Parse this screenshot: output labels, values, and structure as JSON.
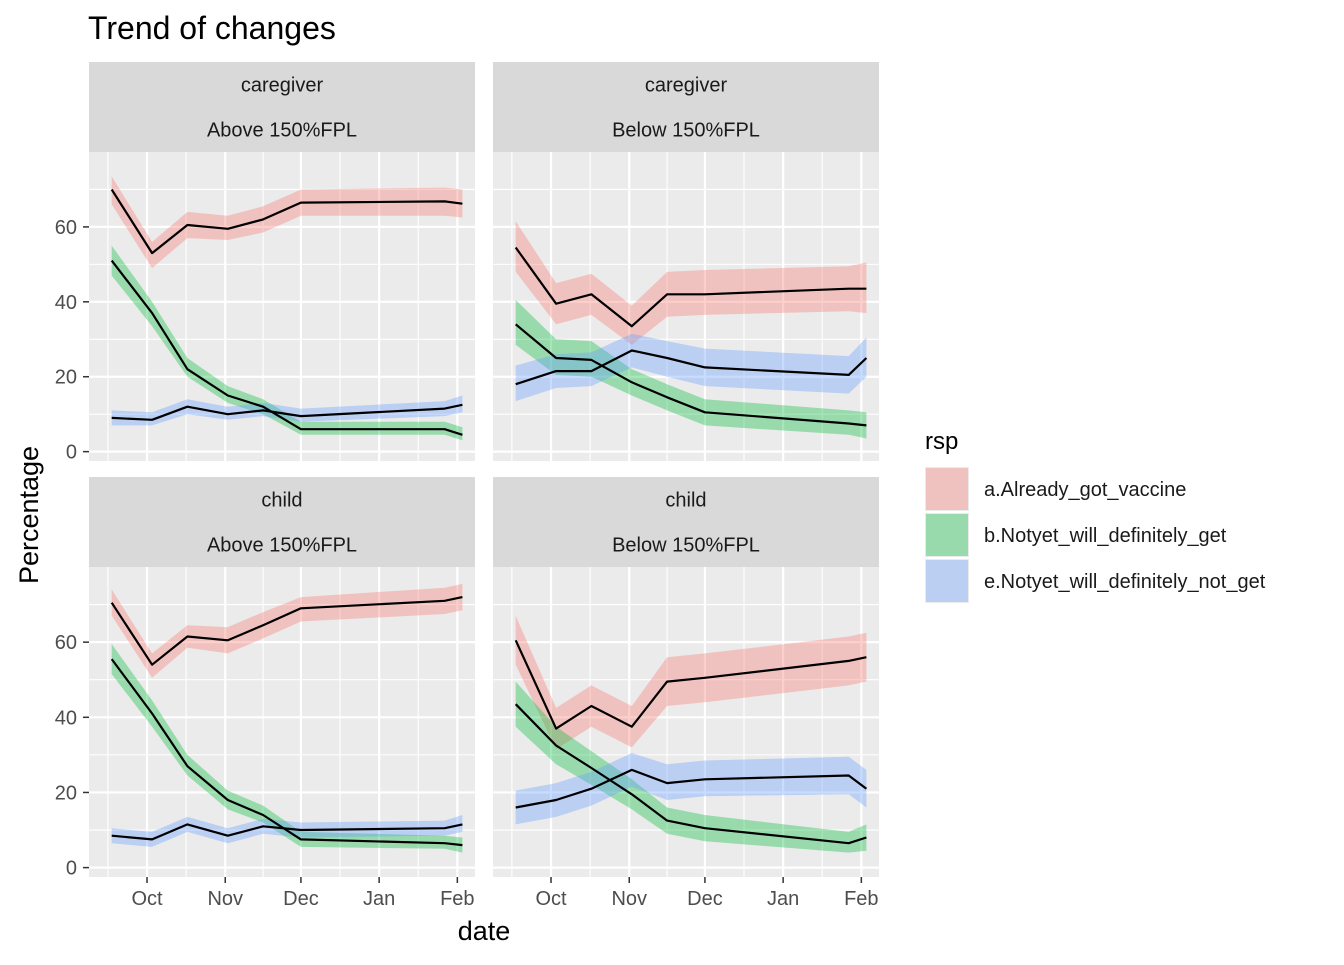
{
  "chart_data": {
    "type": "line",
    "title": "Trend of changes",
    "xlabel": "date",
    "ylabel": "Percentage",
    "legend": {
      "title": "rsp",
      "placement": "right",
      "entries": [
        "a.Already_got_vaccine",
        "b.Notyet_will_definitely_get",
        "e.Notyet_will_definitely_not_get"
      ]
    },
    "colors": {
      "a.Already_got_vaccine": "#F8766D",
      "b.Notyet_will_definitely_get": "#00BA38",
      "e.Notyet_will_definitely_not_get": "#619CFF",
      "line": "#000000",
      "panel_bg": "#EBEBEB",
      "strip_bg": "#D9D9D9",
      "grid": "#FFFFFF"
    },
    "x_ticks": [
      {
        "label": "Oct",
        "date": "2021-10-01"
      },
      {
        "label": "Nov",
        "date": "2021-11-01"
      },
      {
        "label": "Dec",
        "date": "2021-12-01"
      },
      {
        "label": "Jan",
        "date": "2022-01-01"
      },
      {
        "label": "Feb",
        "date": "2022-02-01"
      }
    ],
    "xlim": [
      "2021-09-08",
      "2022-02-08"
    ],
    "y_ticks": [
      0,
      20,
      40,
      60
    ],
    "ylim": [
      -2.5,
      80
    ],
    "grid": true,
    "panels": [
      {
        "strip_top": "caregiver",
        "strip_bottom": "Above 150%FPL",
        "series": [
          {
            "name": "a.Already_got_vaccine",
            "x": [
              "2021-09-17",
              "2021-10-03",
              "2021-10-17",
              "2021-11-02",
              "2021-11-16",
              "2021-12-01",
              "2022-01-27",
              "2022-02-03"
            ],
            "y": [
              70,
              53,
              60.5,
              59.5,
              62,
              66.5,
              66.8,
              66.2
            ],
            "lo": [
              66,
              49,
              57,
              56.5,
              58.5,
              63,
              63,
              62.5
            ],
            "hi": [
              73.5,
              56,
              64,
              63,
              65.5,
              70,
              70.5,
              70
            ]
          },
          {
            "name": "b.Notyet_will_definitely_get",
            "x": [
              "2021-09-17",
              "2021-10-03",
              "2021-10-17",
              "2021-11-02",
              "2021-11-16",
              "2021-12-01",
              "2022-01-27",
              "2022-02-03"
            ],
            "y": [
              51,
              37,
              22,
              15,
              12,
              6,
              6,
              4.5
            ],
            "lo": [
              47,
              33.5,
              20,
              13,
              10,
              4.5,
              4.5,
              3
            ],
            "hi": [
              55,
              40,
              25,
              17.5,
              14,
              8,
              8,
              6.5
            ]
          },
          {
            "name": "e.Notyet_will_definitely_not_get",
            "x": [
              "2021-09-17",
              "2021-10-03",
              "2021-10-17",
              "2021-11-02",
              "2021-11-16",
              "2021-12-01",
              "2022-01-27",
              "2022-02-03"
            ],
            "y": [
              9,
              8.5,
              12,
              10,
              11,
              9.5,
              11.5,
              12.5
            ],
            "lo": [
              7,
              7,
              10,
              8.5,
              9.5,
              8,
              9.5,
              10.5
            ],
            "hi": [
              11,
              10.5,
              14,
              12,
              13,
              11.5,
              13.5,
              15
            ]
          }
        ]
      },
      {
        "strip_top": "caregiver",
        "strip_bottom": "Below 150%FPL",
        "series": [
          {
            "name": "a.Already_got_vaccine",
            "x": [
              "2021-09-17",
              "2021-10-03",
              "2021-10-17",
              "2021-11-02",
              "2021-11-16",
              "2021-12-01",
              "2022-01-27",
              "2022-02-03"
            ],
            "y": [
              54.5,
              39.5,
              42,
              33.5,
              42,
              42,
              43.5,
              43.5
            ],
            "lo": [
              48,
              34,
              36.5,
              28.5,
              36,
              36.5,
              37.5,
              37
            ],
            "hi": [
              61.5,
              45,
              47.5,
              39,
              48,
              48.5,
              49.5,
              50.5
            ]
          },
          {
            "name": "b.Notyet_will_definitely_get",
            "x": [
              "2021-09-17",
              "2021-10-03",
              "2021-10-17",
              "2021-11-02",
              "2021-11-16",
              "2021-12-01",
              "2022-01-27",
              "2022-02-03"
            ],
            "y": [
              34,
              25,
              24.5,
              18.5,
              14.5,
              10.5,
              7.5,
              7
            ],
            "lo": [
              28.5,
              20.5,
              20,
              15,
              11,
              7,
              4.5,
              3.5
            ],
            "hi": [
              40.5,
              30,
              29.5,
              22,
              18,
              14,
              11,
              10.5
            ]
          },
          {
            "name": "e.Notyet_will_definitely_not_get",
            "x": [
              "2021-09-17",
              "2021-10-03",
              "2021-10-17",
              "2021-11-02",
              "2021-11-16",
              "2021-12-01",
              "2022-01-27",
              "2022-02-03"
            ],
            "y": [
              18,
              21.5,
              21.5,
              27,
              25,
              22.5,
              20.5,
              25
            ],
            "lo": [
              13.5,
              17,
              17.5,
              22.5,
              20,
              17.5,
              15.5,
              20
            ],
            "hi": [
              23,
              26,
              26.5,
              31.5,
              29.5,
              27.5,
              25.5,
              30.5
            ]
          }
        ]
      },
      {
        "strip_top": "child",
        "strip_bottom": "Above 150%FPL",
        "series": [
          {
            "name": "a.Already_got_vaccine",
            "x": [
              "2021-09-17",
              "2021-10-03",
              "2021-10-17",
              "2021-11-02",
              "2021-11-16",
              "2021-12-01",
              "2022-01-27",
              "2022-02-03"
            ],
            "y": [
              70.5,
              54,
              61.5,
              60.5,
              64.5,
              69,
              71,
              72
            ],
            "lo": [
              67,
              50.5,
              58.5,
              57,
              61,
              65.5,
              67.5,
              68.5
            ],
            "hi": [
              74,
              57,
              64.5,
              64,
              68,
              72,
              74.5,
              75.5
            ]
          },
          {
            "name": "b.Notyet_will_definitely_get",
            "x": [
              "2021-09-17",
              "2021-10-03",
              "2021-10-17",
              "2021-11-02",
              "2021-11-16",
              "2021-12-01",
              "2022-01-27",
              "2022-02-03"
            ],
            "y": [
              55.5,
              41,
              27,
              18,
              14,
              7.5,
              6.5,
              6
            ],
            "lo": [
              51.5,
              37.5,
              24.5,
              15.5,
              12,
              5.5,
              5,
              4
            ],
            "hi": [
              59.5,
              44.5,
              30,
              20.5,
              16.5,
              9.5,
              8.5,
              8
            ]
          },
          {
            "name": "e.Notyet_will_definitely_not_get",
            "x": [
              "2021-09-17",
              "2021-10-03",
              "2021-10-17",
              "2021-11-02",
              "2021-11-16",
              "2021-12-01",
              "2022-01-27",
              "2022-02-03"
            ],
            "y": [
              8.5,
              7.5,
              11.5,
              8.5,
              11,
              10,
              10.5,
              11.5
            ],
            "lo": [
              6.5,
              5.5,
              9.5,
              6.5,
              9,
              8,
              8.5,
              9.5
            ],
            "hi": [
              10.5,
              9.5,
              13.5,
              10.5,
              13,
              12,
              12.5,
              14
            ]
          }
        ]
      },
      {
        "strip_top": "child",
        "strip_bottom": "Below 150%FPL",
        "series": [
          {
            "name": "a.Already_got_vaccine",
            "x": [
              "2021-09-17",
              "2021-10-03",
              "2021-10-17",
              "2021-11-02",
              "2021-11-16",
              "2021-12-01",
              "2022-01-27",
              "2022-02-03"
            ],
            "y": [
              60.5,
              37,
              43,
              37.5,
              49.5,
              50.5,
              55,
              56
            ],
            "lo": [
              54,
              31.5,
              37.5,
              32,
              43,
              44,
              48.5,
              49.5
            ],
            "hi": [
              67,
              42.5,
              48.5,
              43,
              56,
              57,
              61.5,
              62.5
            ]
          },
          {
            "name": "b.Notyet_will_definitely_get",
            "x": [
              "2021-09-17",
              "2021-10-03",
              "2021-10-17",
              "2021-11-02",
              "2021-11-16",
              "2021-12-01",
              "2022-01-27",
              "2022-02-03"
            ],
            "y": [
              43.5,
              32.5,
              26.5,
              19.5,
              12.5,
              10.5,
              6.5,
              8
            ],
            "lo": [
              37.5,
              27.5,
              22,
              15.5,
              9,
              7,
              4,
              4.5
            ],
            "hi": [
              49.5,
              37.5,
              31,
              23.5,
              16,
              14,
              9.5,
              11.5
            ]
          },
          {
            "name": "e.Notyet_will_definitely_not_get",
            "x": [
              "2021-09-17",
              "2021-10-03",
              "2021-10-17",
              "2021-11-02",
              "2021-11-16",
              "2021-12-01",
              "2022-01-27",
              "2022-02-03"
            ],
            "y": [
              16,
              18,
              21,
              26,
              22.5,
              23.5,
              24.5,
              21
            ],
            "lo": [
              11.5,
              13.5,
              16.5,
              21.5,
              18,
              19,
              19.5,
              16
            ],
            "hi": [
              20.5,
              22.5,
              25.5,
              30.5,
              27.5,
              28.5,
              29.5,
              26
            ]
          }
        ]
      }
    ]
  }
}
